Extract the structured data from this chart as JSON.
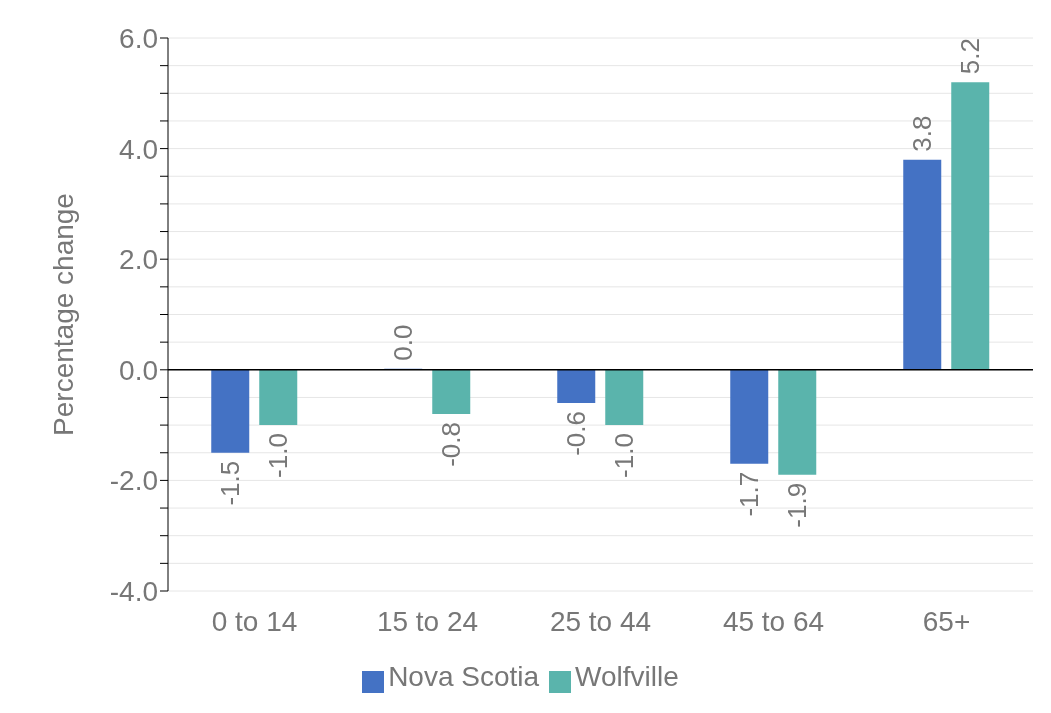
{
  "chart_data": {
    "type": "bar",
    "ylabel": "Percentage change",
    "categories": [
      "0 to 14",
      "15 to 24",
      "25 to 44",
      "45 to 64",
      "65+"
    ],
    "series": [
      {
        "name": "Nova Scotia",
        "color": "#4472c4",
        "values": [
          -1.5,
          0.0,
          -0.6,
          -1.7,
          3.8
        ],
        "value_labels": [
          "-1.5",
          "0.0",
          "-0.6",
          "-1.7",
          "3.8"
        ]
      },
      {
        "name": "Wolfville",
        "color": "#5ab4ac",
        "values": [
          -1.0,
          -0.8,
          -1.0,
          -1.9,
          5.2
        ],
        "value_labels": [
          "-1.0",
          "-0.8",
          "-1.0",
          "-1.9",
          "5.2"
        ]
      }
    ],
    "ylim": [
      -4,
      6
    ],
    "yticks": [
      {
        "value": -4,
        "label": "-4.0"
      },
      {
        "value": -3.5,
        "label": null
      },
      {
        "value": -3,
        "label": null
      },
      {
        "value": -2.5,
        "label": null
      },
      {
        "value": -2,
        "label": "-2.0"
      },
      {
        "value": -1.5,
        "label": null
      },
      {
        "value": -1,
        "label": null
      },
      {
        "value": -0.5,
        "label": null
      },
      {
        "value": 0,
        "label": "0.0"
      },
      {
        "value": 0.5,
        "label": null
      },
      {
        "value": 1,
        "label": null
      },
      {
        "value": 1.5,
        "label": null
      },
      {
        "value": 2,
        "label": "2.0"
      },
      {
        "value": 2.5,
        "label": null
      },
      {
        "value": 3,
        "label": null
      },
      {
        "value": 3.5,
        "label": null
      },
      {
        "value": 4,
        "label": "4.0"
      },
      {
        "value": 4.5,
        "label": null
      },
      {
        "value": 5,
        "label": null
      },
      {
        "value": 5.5,
        "label": null
      },
      {
        "value": 6,
        "label": "6.0"
      }
    ],
    "grid": "y",
    "legend": "bottom"
  }
}
